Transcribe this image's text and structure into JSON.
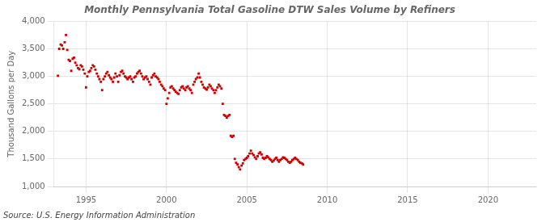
{
  "chart_data": {
    "type": "scatter",
    "title": "Monthly Pennsylvania Total Gasoline DTW Sales Volume by Refiners",
    "ylabel": "Thousand Gallons per Day",
    "source": "Source: U.S. Energy Information Administration",
    "color": "#cc0000",
    "marker": "square",
    "grid": true,
    "xlim": [
      1993.0,
      2023.0
    ],
    "xticks": [
      1995,
      2000,
      2005,
      2010,
      2015,
      2020
    ],
    "ylim": [
      1000,
      4000
    ],
    "yticks": [
      {
        "value": 1000,
        "label": "1,000"
      },
      {
        "value": 1500,
        "label": "1,500"
      },
      {
        "value": 2000,
        "label": "2,000"
      },
      {
        "value": 2500,
        "label": "2,500"
      },
      {
        "value": 3000,
        "label": "3,000"
      },
      {
        "value": 3500,
        "label": "3,500"
      },
      {
        "value": 4000,
        "label": "4,000"
      }
    ],
    "x": [
      1993.25,
      1993.33,
      1993.42,
      1993.5,
      1993.58,
      1993.67,
      1993.75,
      1993.83,
      1993.92,
      1994.0,
      1994.08,
      1994.17,
      1994.25,
      1994.33,
      1994.42,
      1994.5,
      1994.58,
      1994.67,
      1994.75,
      1994.83,
      1994.92,
      1995.0,
      1995.08,
      1995.17,
      1995.25,
      1995.33,
      1995.42,
      1995.5,
      1995.58,
      1995.67,
      1995.75,
      1995.83,
      1995.92,
      1996.0,
      1996.08,
      1996.17,
      1996.25,
      1996.33,
      1996.42,
      1996.5,
      1996.58,
      1996.67,
      1996.75,
      1996.83,
      1996.92,
      1997.0,
      1997.08,
      1997.17,
      1997.25,
      1997.33,
      1997.42,
      1997.5,
      1997.58,
      1997.67,
      1997.75,
      1997.83,
      1997.92,
      1998.0,
      1998.08,
      1998.17,
      1998.25,
      1998.33,
      1998.42,
      1998.5,
      1998.58,
      1998.67,
      1998.75,
      1998.83,
      1998.92,
      1999.0,
      1999.08,
      1999.17,
      1999.25,
      1999.33,
      1999.42,
      1999.5,
      1999.58,
      1999.67,
      1999.75,
      1999.83,
      1999.92,
      2000.0,
      2000.08,
      2000.17,
      2000.25,
      2000.33,
      2000.42,
      2000.5,
      2000.58,
      2000.67,
      2000.75,
      2000.83,
      2000.92,
      2001.0,
      2001.08,
      2001.17,
      2001.25,
      2001.33,
      2001.42,
      2001.5,
      2001.58,
      2001.67,
      2001.75,
      2001.83,
      2001.92,
      2002.0,
      2002.08,
      2002.17,
      2002.25,
      2002.33,
      2002.42,
      2002.5,
      2002.58,
      2002.67,
      2002.75,
      2002.83,
      2002.92,
      2003.0,
      2003.08,
      2003.17,
      2003.25,
      2003.33,
      2003.42,
      2003.5,
      2003.58,
      2003.67,
      2003.75,
      2003.83,
      2003.92,
      2004.0,
      2004.08,
      2004.17,
      2004.25,
      2004.33,
      2004.42,
      2004.5,
      2004.58,
      2004.67,
      2004.75,
      2004.83,
      2004.92,
      2005.0,
      2005.08,
      2005.17,
      2005.25,
      2005.33,
      2005.42,
      2005.5,
      2005.58,
      2005.67,
      2005.75,
      2005.83,
      2005.92,
      2006.0,
      2006.08,
      2006.17,
      2006.25,
      2006.33,
      2006.42,
      2006.5,
      2006.58,
      2006.67,
      2006.75,
      2006.83,
      2006.92,
      2007.0,
      2007.08,
      2007.17,
      2007.25,
      2007.33,
      2007.42,
      2007.5,
      2007.58,
      2007.67,
      2007.75,
      2007.83,
      2007.92,
      2008.0,
      2008.08,
      2008.17,
      2008.25,
      2008.33,
      2008.42,
      2008.5
    ],
    "values": [
      3010,
      3500,
      3580,
      3560,
      3500,
      3620,
      3750,
      3480,
      3300,
      3280,
      3100,
      3320,
      3340,
      3250,
      3200,
      3150,
      3130,
      3200,
      3180,
      3120,
      3050,
      2800,
      3000,
      3080,
      3100,
      3150,
      3200,
      3180,
      3120,
      3050,
      3000,
      2950,
      2900,
      2750,
      2950,
      3000,
      3050,
      3080,
      3020,
      2980,
      2950,
      2900,
      2980,
      3050,
      3000,
      2900,
      3020,
      3080,
      3100,
      3050,
      3000,
      2980,
      2950,
      2980,
      3000,
      2950,
      2900,
      2980,
      3000,
      3050,
      3080,
      3100,
      3050,
      3000,
      2950,
      2980,
      3000,
      2950,
      2900,
      2850,
      2980,
      3020,
      3050,
      3000,
      2980,
      2950,
      2900,
      2850,
      2820,
      2780,
      2750,
      2500,
      2600,
      2700,
      2800,
      2820,
      2780,
      2750,
      2720,
      2700,
      2680,
      2750,
      2800,
      2820,
      2780,
      2750,
      2800,
      2820,
      2780,
      2750,
      2700,
      2850,
      2900,
      2950,
      2980,
      3050,
      2980,
      2900,
      2850,
      2800,
      2780,
      2760,
      2800,
      2850,
      2820,
      2780,
      2750,
      2700,
      2750,
      2800,
      2850,
      2820,
      2780,
      2500,
      2300,
      2280,
      2250,
      2280,
      2300,
      1920,
      1900,
      1920,
      1500,
      1430,
      1400,
      1350,
      1310,
      1380,
      1420,
      1480,
      1500,
      1520,
      1550,
      1600,
      1650,
      1600,
      1570,
      1530,
      1500,
      1550,
      1600,
      1620,
      1580,
      1520,
      1500,
      1520,
      1550,
      1530,
      1500,
      1480,
      1450,
      1470,
      1500,
      1520,
      1480,
      1450,
      1480,
      1500,
      1530,
      1520,
      1500,
      1480,
      1450,
      1430,
      1450,
      1480,
      1500,
      1520,
      1500,
      1480,
      1450,
      1430,
      1420,
      1400
    ]
  }
}
